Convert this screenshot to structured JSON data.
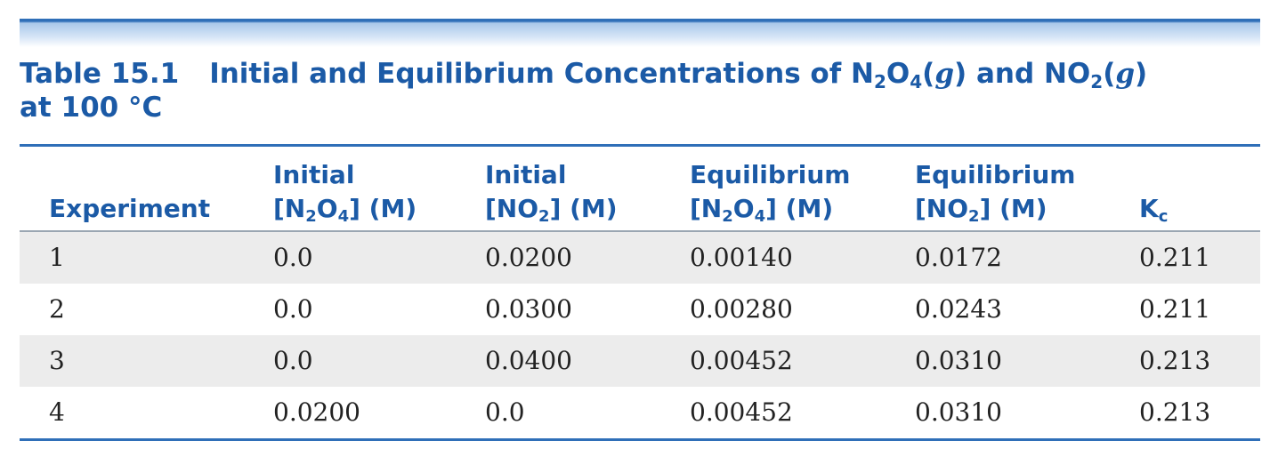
{
  "caption": {
    "table_number": "Table 15.1",
    "title_part1": "Initial and Equilibrium Concentrations of N",
    "sub1": "2",
    "title_part2": "O",
    "sub2": "4",
    "title_part3": "(",
    "g1": "g",
    "title_part4": ") and NO",
    "sub3": "2",
    "title_part5": "(",
    "g2": "g",
    "title_part6": ")",
    "line2": "at 100 °C"
  },
  "table": {
    "headers": {
      "experiment": "Experiment",
      "init_n2o4": {
        "line1": "Initial",
        "l2a": "[N",
        "s1": "2",
        "l2b": "O",
        "s2": "4",
        "l2c": "] (M)"
      },
      "init_no2": {
        "line1": "Initial",
        "l2a": "[NO",
        "s1": "2",
        "l2c": "] (M)"
      },
      "eq_n2o4": {
        "line1": "Equilibrium",
        "l2a": "[N",
        "s1": "2",
        "l2b": "O",
        "s2": "4",
        "l2c": "] (M)"
      },
      "eq_no2": {
        "line1": "Equilibrium",
        "l2a": "[NO",
        "s1": "2",
        "l2c": "] (M)"
      },
      "kc": {
        "main": "K",
        "sub": "c"
      }
    },
    "rows": [
      {
        "experiment": "1",
        "init_n2o4": "0.0",
        "init_no2": "0.0200",
        "eq_n2o4": "0.00140",
        "eq_no2": "0.0172",
        "kc": "0.211"
      },
      {
        "experiment": "2",
        "init_n2o4": "0.0",
        "init_no2": "0.0300",
        "eq_n2o4": "0.00280",
        "eq_no2": "0.0243",
        "kc": "0.211"
      },
      {
        "experiment": "3",
        "init_n2o4": "0.0",
        "init_no2": "0.0400",
        "eq_n2o4": "0.00452",
        "eq_no2": "0.0310",
        "kc": "0.213"
      },
      {
        "experiment": "4",
        "init_n2o4": "0.0200",
        "init_no2": "0.0",
        "eq_n2o4": "0.00452",
        "eq_no2": "0.0310",
        "kc": "0.213"
      }
    ]
  }
}
